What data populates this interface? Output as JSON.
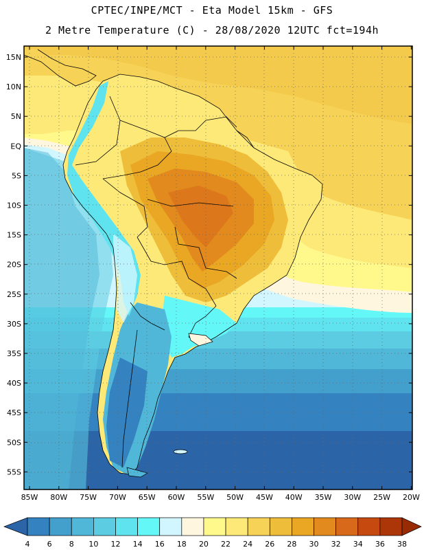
{
  "title_line1": "CPTEC/INPE/MCT -  Eta Model 15km - GFS",
  "title_line2": "2 Metre Temperature (C) - 28/08/2020 12UTC fct=194h",
  "lat_labels": [
    "15N",
    "10N",
    "5N",
    "EQ",
    "5S",
    "10S",
    "15S",
    "20S",
    "25S",
    "30S",
    "35S",
    "40S",
    "45S",
    "50S",
    "55S"
  ],
  "lon_labels": [
    "85W",
    "80W",
    "75W",
    "70W",
    "65W",
    "60W",
    "55W",
    "50W",
    "45W",
    "40W",
    "35W",
    "30W",
    "25W",
    "20W"
  ],
  "colorbar": {
    "labels": [
      "4",
      "6",
      "8",
      "10",
      "12",
      "14",
      "16",
      "18",
      "20",
      "22",
      "24",
      "26",
      "28",
      "30",
      "32",
      "34",
      "36",
      "38"
    ],
    "colors": [
      "#2c64a8",
      "#3582c0",
      "#43a0cc",
      "#50b7d8",
      "#5ccce2",
      "#5ee3ef",
      "#63f7f8",
      "#d2f6ff",
      "#fff6df",
      "#fff98c",
      "#fde978",
      "#f6d256",
      "#eebd3a",
      "#e9a723",
      "#e28a1d",
      "#d8681a",
      "#c64a10",
      "#ad3608",
      "#982a04"
    ]
  }
}
